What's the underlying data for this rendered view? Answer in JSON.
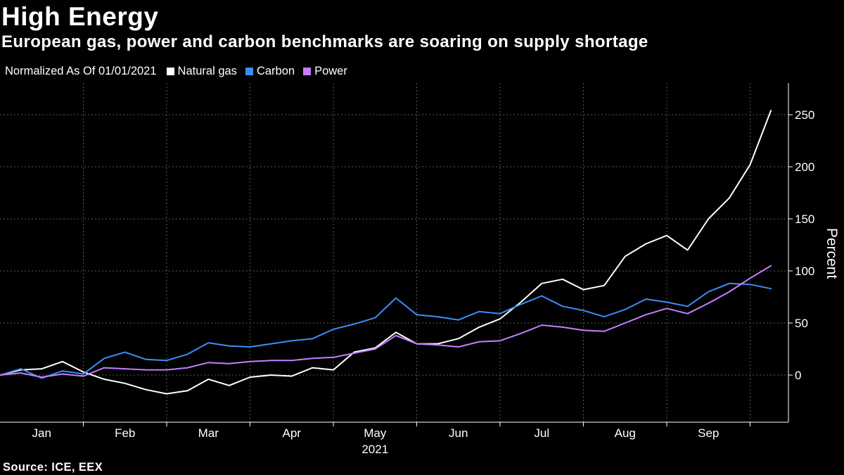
{
  "header": {
    "title": "High Energy",
    "subtitle": "European gas, power and carbon benchmarks are soaring on supply shortage"
  },
  "legend": {
    "note": "Normalized As Of 01/01/2021"
  },
  "source": "Source: ICE, EEX",
  "chart_data": {
    "type": "line",
    "title": "High Energy",
    "subtitle": "European gas, power and carbon benchmarks are soaring on supply shortage",
    "xlabel": "",
    "ylabel": "Percent",
    "year_label": "2021",
    "x_ticks": [
      "Jan",
      "Feb",
      "Mar",
      "Apr",
      "May",
      "Jun",
      "Jul",
      "Aug",
      "Sep"
    ],
    "y_ticks": [
      0,
      50,
      100,
      150,
      200,
      250
    ],
    "ylim": [
      -45,
      280
    ],
    "grid": true,
    "legend_position": "top-left",
    "x": [
      0,
      0.25,
      0.5,
      0.75,
      1,
      1.25,
      1.5,
      1.75,
      2,
      2.25,
      2.5,
      2.75,
      3,
      3.25,
      3.5,
      3.75,
      4,
      4.25,
      4.5,
      4.75,
      5,
      5.25,
      5.5,
      5.75,
      6,
      6.25,
      6.5,
      6.75,
      7,
      7.25,
      7.5,
      7.75,
      8,
      8.25,
      8.5,
      8.75,
      9,
      9.25
    ],
    "series": [
      {
        "name": "Natural gas",
        "color": "#ffffff",
        "values": [
          0,
          5,
          6,
          13,
          3,
          -4,
          -8,
          -14,
          -18,
          -15,
          -4,
          -10,
          -2,
          0,
          -1,
          7,
          5,
          22,
          26,
          41,
          30,
          30,
          35,
          46,
          54,
          70,
          88,
          92,
          82,
          86,
          114,
          126,
          134,
          120,
          150,
          170,
          202,
          254
        ]
      },
      {
        "name": "Carbon",
        "color": "#3a8ef6",
        "values": [
          0,
          6,
          -3,
          4,
          1,
          16,
          22,
          15,
          14,
          20,
          31,
          28,
          27,
          30,
          33,
          35,
          44,
          49,
          55,
          74,
          58,
          56,
          53,
          61,
          59,
          68,
          76,
          66,
          62,
          56,
          63,
          73,
          70,
          66,
          80,
          88,
          87,
          83
        ]
      },
      {
        "name": "Power",
        "color": "#c77dff",
        "values": [
          0,
          2,
          -2,
          1,
          -1,
          7,
          6,
          5,
          5,
          7,
          12,
          11,
          13,
          14,
          14,
          16,
          17,
          21,
          25,
          38,
          30,
          29,
          27,
          32,
          33,
          40,
          48,
          46,
          43,
          42,
          50,
          58,
          64,
          59,
          69,
          80,
          93,
          105
        ]
      }
    ]
  }
}
